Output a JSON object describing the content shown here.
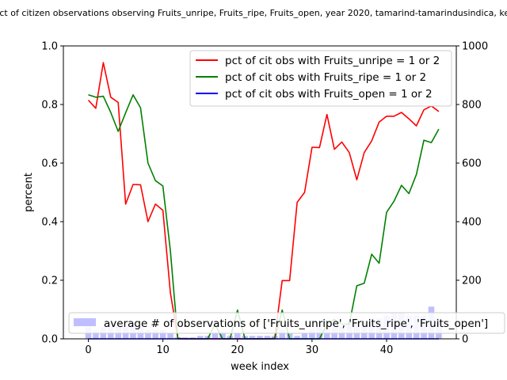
{
  "chart_data": {
    "type": "line",
    "title": "pct of citizen observations observing Fruits_unripe, Fruits_ripe, Fruits_open, year 2020, tamarind-tamarindusindica, ker",
    "xlabel": "week index",
    "ylabel": "percent",
    "xlim": [
      -3.35,
      49.35
    ],
    "ylim": [
      0,
      1
    ],
    "y2lim": [
      0,
      1000
    ],
    "xticks": [
      0,
      10,
      20,
      30,
      40
    ],
    "xtick_labels": [
      "0",
      "10",
      "20",
      "30",
      "40"
    ],
    "yticks": [
      0,
      0.2,
      0.4,
      0.6,
      0.8,
      1
    ],
    "ytick_labels": [
      "0.0",
      "0.2",
      "0.4",
      "0.6",
      "0.8",
      "1.0"
    ],
    "y2ticks": [
      0,
      200,
      400,
      600,
      800,
      1000
    ],
    "y2tick_labels": [
      "0",
      "200",
      "400",
      "600",
      "800",
      "1000"
    ],
    "legend_upper": "top-right",
    "legend_lower": "lower-left",
    "series": [
      {
        "name": "pct of cit obs with Fruits_unripe = 1 or 2",
        "color": "#ff0000",
        "x": [
          0,
          1,
          2,
          3,
          4,
          5,
          6,
          7,
          8,
          9,
          10,
          11,
          12,
          13,
          14,
          15,
          16,
          17,
          18,
          19,
          20,
          21,
          22,
          23,
          24,
          25,
          26,
          27,
          28,
          29,
          30,
          31,
          32,
          33,
          34,
          35,
          36,
          37,
          38,
          39,
          40,
          41,
          42,
          43,
          44,
          45,
          46,
          47
        ],
        "values": [
          0.815,
          0.787,
          0.943,
          0.825,
          0.807,
          0.46,
          0.527,
          0.526,
          0.4,
          0.46,
          0.439,
          0.157,
          0.002,
          0.0,
          0.0,
          0.0,
          0.0,
          0.0,
          0.0,
          0.0,
          0.0,
          0.0,
          0.0,
          0.0,
          0.0,
          0.002,
          0.199,
          0.199,
          0.466,
          0.5,
          0.654,
          0.653,
          0.766,
          0.647,
          0.672,
          0.636,
          0.543,
          0.636,
          0.676,
          0.74,
          0.76,
          0.76,
          0.773,
          0.751,
          0.727,
          0.782,
          0.795,
          0.776
        ]
      },
      {
        "name": "pct of cit obs with Fruits_ripe = 1 or 2",
        "color": "#008000",
        "x": [
          0,
          1,
          2,
          3,
          4,
          5,
          6,
          7,
          8,
          9,
          10,
          11,
          12,
          13,
          14,
          15,
          16,
          17,
          18,
          19,
          20,
          21,
          22,
          23,
          24,
          25,
          26,
          27,
          28,
          29,
          30,
          31,
          32,
          33,
          34,
          35,
          36,
          37,
          38,
          39,
          40,
          41,
          42,
          43,
          44,
          45,
          46,
          47
        ],
        "values": [
          0.833,
          0.825,
          0.828,
          0.773,
          0.708,
          0.772,
          0.833,
          0.789,
          0.6,
          0.54,
          0.522,
          0.3,
          0.0,
          0.0,
          0.0,
          0.0,
          0.0,
          0.05,
          0.0,
          0.0,
          0.098,
          0.0,
          0.0,
          0.0,
          0.0,
          0.0,
          0.098,
          0.0,
          0.0,
          0.0,
          0.0,
          0.0,
          0.05,
          0.066,
          0.05,
          0.05,
          0.181,
          0.19,
          0.289,
          0.258,
          0.432,
          0.47,
          0.524,
          0.496,
          0.561,
          0.678,
          0.67,
          0.716
        ]
      },
      {
        "name": "pct of cit obs with Fruits_open = 1 or 2",
        "color": "#0000ff",
        "x": [
          0,
          1,
          2,
          3,
          4,
          5,
          6,
          7,
          8,
          9,
          10,
          11,
          12,
          13,
          14,
          15,
          16,
          17,
          18,
          19,
          20,
          21,
          22,
          23,
          24,
          25,
          26,
          27,
          28,
          29,
          30,
          31,
          32,
          33,
          34,
          35,
          36,
          37,
          38,
          39,
          40,
          41,
          42,
          43,
          44,
          45,
          46,
          47
        ],
        "values": [
          0,
          0,
          0,
          0,
          0,
          0,
          0,
          0,
          0,
          0,
          0,
          0,
          0,
          0,
          0,
          0,
          0,
          0,
          0,
          0,
          0,
          0,
          0,
          0,
          0,
          0,
          0,
          0,
          0,
          0,
          0,
          0,
          0,
          0,
          0,
          0,
          0,
          0,
          0,
          0,
          0,
          0,
          0,
          0,
          0,
          0,
          0,
          0
        ]
      }
    ],
    "bars": {
      "name": "average # of observations of ['Fruits_unripe', 'Fruits_ripe', 'Fruits_open']",
      "color": "#0000ff",
      "x": [
        0,
        1,
        2,
        3,
        4,
        5,
        6,
        7,
        8,
        9,
        10,
        11,
        12,
        13,
        14,
        15,
        16,
        17,
        18,
        19,
        20,
        21,
        22,
        23,
        24,
        25,
        26,
        27,
        28,
        29,
        30,
        31,
        32,
        33,
        34,
        35,
        36,
        37,
        38,
        39,
        40,
        41,
        42,
        43,
        44,
        45,
        46,
        47
      ],
      "values": [
        40,
        30,
        40,
        40,
        50,
        40,
        50,
        40,
        30,
        30,
        30,
        20,
        5,
        5,
        5,
        10,
        10,
        20,
        20,
        10,
        20,
        10,
        10,
        10,
        10,
        10,
        30,
        20,
        10,
        20,
        30,
        40,
        40,
        40,
        40,
        60,
        60,
        60,
        70,
        70,
        80,
        90,
        90,
        80,
        80,
        80,
        110,
        70
      ]
    }
  }
}
